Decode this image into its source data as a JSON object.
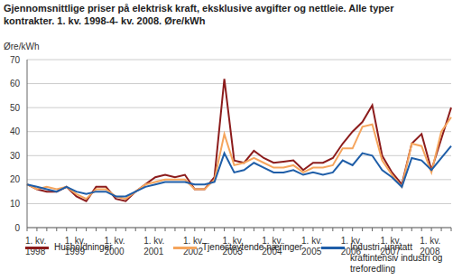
{
  "chart_data": {
    "type": "line",
    "title": "Gjennomsnittlige priser på elektrisk kraft, eksklusive avgifter og nettleie. Alle typer kontrakter. 1. kv. 1998-4- kv. 2008. Øre/kWh",
    "y_label": "Øre/kWh",
    "categories": [
      "1. kv. 1998",
      null,
      null,
      null,
      "1. kv. 1999",
      null,
      null,
      null,
      "1. kv. 2000",
      null,
      null,
      null,
      "1. kv. 2001",
      null,
      null,
      null,
      "1. kv. 2002",
      null,
      null,
      null,
      "1. kv. 2003",
      null,
      null,
      null,
      "1. kv. 2004",
      null,
      null,
      null,
      "1. kv. 2005",
      null,
      null,
      null,
      "1. kv. 2006",
      null,
      null,
      null,
      "1. kv. 2007",
      null,
      null,
      null,
      "1. kv. 2008",
      null,
      null,
      null
    ],
    "series": [
      {
        "name": "Husholdninger",
        "color": "#8c1c1c",
        "values": [
          18,
          16,
          15,
          15,
          17,
          13,
          11,
          17,
          17,
          12,
          11,
          15,
          18,
          21,
          22,
          21,
          22,
          16,
          16,
          21,
          62,
          28,
          27,
          32,
          29,
          27,
          27.5,
          28,
          24,
          27,
          27,
          29,
          35,
          40,
          44,
          51,
          30,
          23,
          18,
          35,
          39,
          24,
          37,
          50
        ]
      },
      {
        "name": "Tjenesteytende næringer",
        "color": "#f5a55d",
        "values": [
          18,
          16,
          17,
          16,
          17,
          14,
          12,
          16,
          16,
          13,
          12,
          15,
          18,
          19,
          20,
          20,
          20,
          16,
          16,
          20,
          39,
          26,
          27,
          29,
          27,
          25,
          25,
          26,
          23,
          25,
          25,
          26,
          33,
          33,
          42,
          43,
          28,
          22,
          17,
          35,
          34,
          23,
          40,
          46
        ]
      },
      {
        "name": "Industri, unntatt kraftintensiv industri og treforedling",
        "color": "#1f5ea8",
        "values": [
          18,
          17,
          16,
          15,
          17,
          15,
          14,
          15,
          15,
          13,
          13,
          15,
          17,
          18,
          19,
          19,
          19,
          18,
          18,
          19,
          31,
          23,
          24,
          27,
          25,
          23,
          23,
          24,
          22,
          23,
          22,
          23,
          28,
          26,
          31,
          30,
          24,
          21,
          17,
          29,
          28,
          24,
          29,
          34
        ]
      }
    ],
    "ylim": [
      0,
      70
    ],
    "yticks": [
      0,
      10,
      20,
      30,
      40,
      50,
      60,
      70
    ],
    "grid": true,
    "legend": "bottom"
  }
}
